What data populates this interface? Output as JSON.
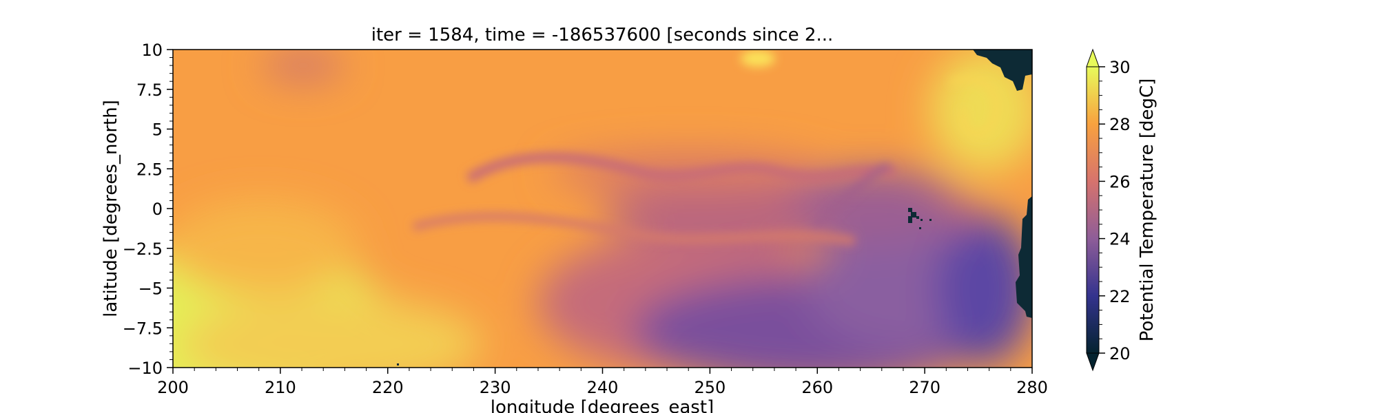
{
  "chart_data": {
    "type": "heatmap",
    "title": "iter = 1584, time = -186537600 [seconds since 2...",
    "xlabel": "longitude [degrees_east]",
    "ylabel": "latitude [degrees_north]",
    "xlim": [
      200,
      280
    ],
    "ylim": [
      -10,
      10
    ],
    "xticks": [
      "200",
      "210",
      "220",
      "230",
      "240",
      "250",
      "260",
      "270",
      "280"
    ],
    "yticks": [
      "10",
      "7.5",
      "5",
      "2.5",
      "0",
      "−2.5",
      "−5",
      "−7.5",
      "−10"
    ],
    "colorbar": {
      "label": "Potential Temperature [degC]",
      "range": [
        20,
        30
      ],
      "ticks": [
        "30",
        "28",
        "26",
        "24",
        "22",
        "20"
      ],
      "extend": "both",
      "colormap": "thermal",
      "colors": [
        "#04232f",
        "#34338e",
        "#8e5d98",
        "#d6736d",
        "#f8a13f",
        "#e8fa5b"
      ]
    },
    "field_description_values": {
      "units": "degC",
      "warm_pool_west_south_value": 29.5,
      "equatorial_cold_tongue_value": 24.5,
      "southeast_cold_value": 22.5,
      "northeast_warm_value": 29.0
    },
    "land_color": "#0d2a35"
  }
}
